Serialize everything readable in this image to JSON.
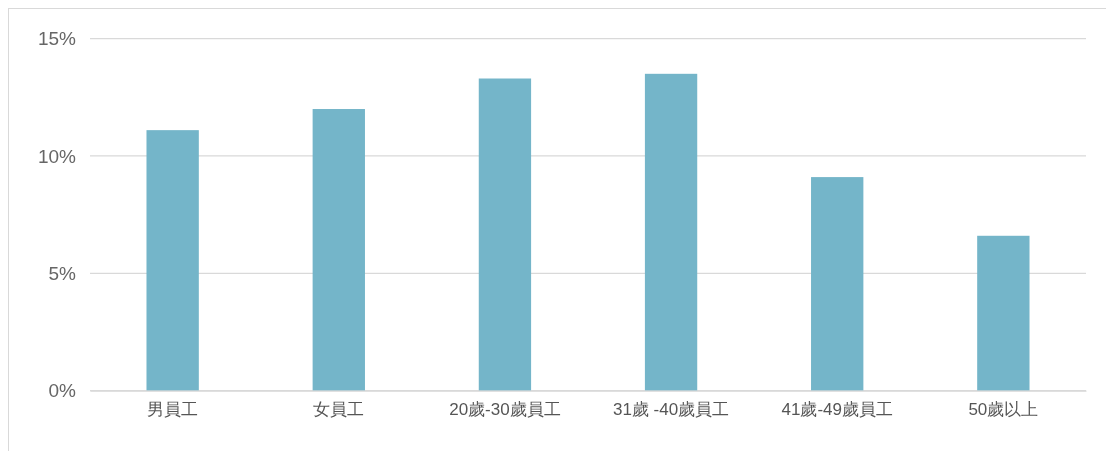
{
  "chart_data": {
    "type": "bar",
    "categories": [
      "男員工",
      "女員工",
      "20歲-30歲員工",
      "31歲 -40歲員工",
      "41歲-49歲員工",
      "50歲以上"
    ],
    "values": [
      11.1,
      12.0,
      13.3,
      13.5,
      9.1,
      6.6
    ],
    "color": "#74b5c9",
    "ylim": [
      0,
      15
    ],
    "yticks": [
      {
        "value": 0,
        "label": "0%"
      },
      {
        "value": 5,
        "label": "5%"
      },
      {
        "value": 10,
        "label": "10%"
      },
      {
        "value": 15,
        "label": "15%"
      }
    ],
    "grid": "y"
  }
}
